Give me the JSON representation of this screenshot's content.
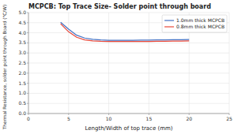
{
  "chart_data": {
    "type": "line",
    "title": "MCPCB: Top Trace Size- Solder point through board",
    "xlabel": "Length/Width of top trace (mm)",
    "ylabel": "Thermal Resistance, solder point through Board (°C/W)",
    "x": [
      4,
      5,
      6,
      7,
      8,
      9,
      10,
      11,
      12,
      13,
      14,
      15,
      16,
      17,
      18,
      19,
      20
    ],
    "series": [
      {
        "name": "1.0mm thick MCPCB",
        "color": "#4472c4",
        "values": [
          4.52,
          4.18,
          3.88,
          3.74,
          3.68,
          3.65,
          3.63,
          3.63,
          3.63,
          3.63,
          3.64,
          3.64,
          3.65,
          3.65,
          3.66,
          3.66,
          3.67
        ]
      },
      {
        "name": "0.8mm thick MCPCB",
        "color": "#e8483a",
        "values": [
          4.45,
          4.05,
          3.78,
          3.65,
          3.6,
          3.58,
          3.57,
          3.57,
          3.57,
          3.57,
          3.57,
          3.57,
          3.58,
          3.58,
          3.59,
          3.59,
          3.6
        ]
      }
    ],
    "xlim": [
      0,
      25
    ],
    "ylim": [
      0.0,
      5.0
    ],
    "xticks": [
      0,
      5,
      10,
      15,
      20,
      25
    ],
    "yticks": [
      {
        "value": 0.0,
        "label": "0.0"
      },
      0.5,
      {
        "value": 1.0,
        "label": "1.0"
      },
      1.5,
      {
        "value": 2.0,
        "label": "2.0"
      },
      2.5,
      {
        "value": 3.0,
        "label": "3.0"
      },
      3.5,
      {
        "value": 4.0,
        "label": "4.0"
      },
      4.5,
      {
        "value": 5.0,
        "label": "5.0"
      }
    ],
    "grid": true,
    "legend": "upper right"
  }
}
